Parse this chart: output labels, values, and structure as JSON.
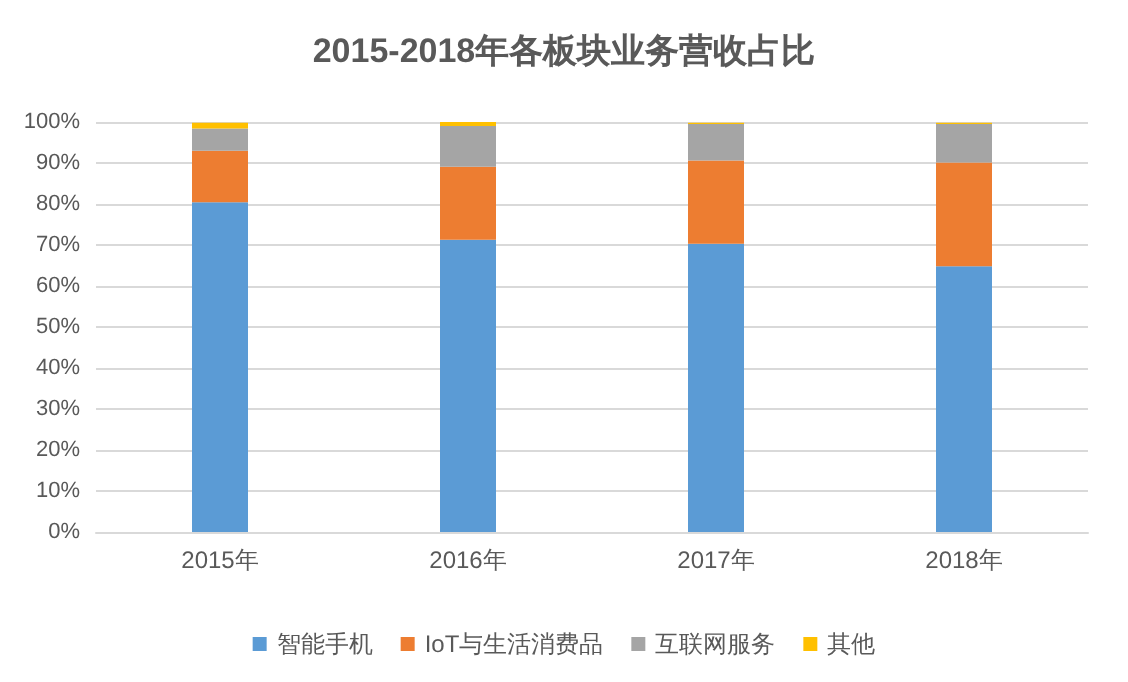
{
  "chart_data": {
    "type": "bar",
    "title": "2015-2018年各板块业务营收占比",
    "categories": [
      "2015年",
      "2016年",
      "2017年",
      "2018年"
    ],
    "stacked": true,
    "series": [
      {
        "name": "智能手机",
        "color": "#5b9bd5",
        "values": [
          80.4,
          71.3,
          70.3,
          64.8
        ]
      },
      {
        "name": "IoT与生活消费品",
        "color": "#ed7d31",
        "values": [
          12.6,
          17.8,
          20.3,
          25.3
        ]
      },
      {
        "name": "互联网服务",
        "color": "#a5a5a5",
        "values": [
          5.4,
          9.9,
          8.9,
          9.4
        ]
      },
      {
        "name": "其他",
        "color": "#ffc000",
        "values": [
          1.4,
          1.0,
          0.3,
          0.3
        ]
      }
    ],
    "ylim": [
      0,
      100
    ],
    "yticks": [
      {
        "value": 0,
        "label": "0%"
      },
      {
        "value": 10,
        "label": "10%"
      },
      {
        "value": 20,
        "label": "20%"
      },
      {
        "value": 30,
        "label": "30%"
      },
      {
        "value": 40,
        "label": "40%"
      },
      {
        "value": 50,
        "label": "50%"
      },
      {
        "value": 60,
        "label": "60%"
      },
      {
        "value": 70,
        "label": "70%"
      },
      {
        "value": 80,
        "label": "80%"
      },
      {
        "value": 90,
        "label": "90%"
      },
      {
        "value": 100,
        "label": "100%"
      }
    ],
    "grid": "y",
    "legend": "bottom"
  }
}
